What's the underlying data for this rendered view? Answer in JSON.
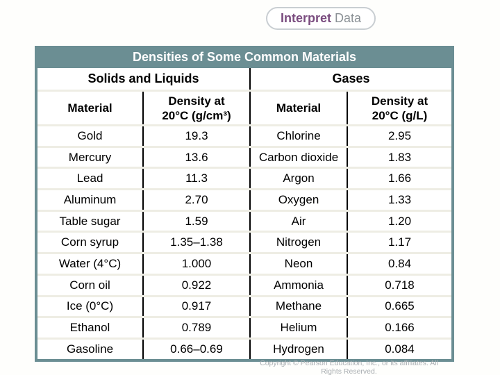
{
  "badge": {
    "bold_text": "Interpret",
    "light_text": "Data"
  },
  "table": {
    "title": "Densities of Some Common Materials",
    "section_left": "Solids and Liquids",
    "section_right": "Gases",
    "columns": [
      {
        "header": "Material"
      },
      {
        "header": "Density at\n20°C (g/cm³)"
      },
      {
        "header": "Material"
      },
      {
        "header": "Density at\n20°C (g/L)"
      }
    ],
    "rows": [
      {
        "solid": "Gold",
        "solid_density": "19.3",
        "gas": "Chlorine",
        "gas_density": "2.95"
      },
      {
        "solid": "Mercury",
        "solid_density": "13.6",
        "gas": "Carbon dioxide",
        "gas_density": "1.83"
      },
      {
        "solid": "Lead",
        "solid_density": "11.3",
        "gas": "Argon",
        "gas_density": "1.66"
      },
      {
        "solid": "Aluminum",
        "solid_density": "2.70",
        "gas": "Oxygen",
        "gas_density": "1.33"
      },
      {
        "solid": "Table sugar",
        "solid_density": "1.59",
        "gas": "Air",
        "gas_density": "1.20"
      },
      {
        "solid": "Corn syrup",
        "solid_density": "1.35–1.38",
        "gas": "Nitrogen",
        "gas_density": "1.17"
      },
      {
        "solid": "Water (4°C)",
        "solid_density": "1.000",
        "gas": "Neon",
        "gas_density": "0.84"
      },
      {
        "solid": "Corn oil",
        "solid_density": "0.922",
        "gas": "Ammonia",
        "gas_density": "0.718"
      },
      {
        "solid": "Ice (0°C)",
        "solid_density": "0.917",
        "gas": "Methane",
        "gas_density": "0.665"
      },
      {
        "solid": "Ethanol",
        "solid_density": "0.789",
        "gas": "Helium",
        "gas_density": "0.166"
      },
      {
        "solid": "Gasoline",
        "solid_density": "0.66–0.69",
        "gas": "Hydrogen",
        "gas_density": "0.084"
      }
    ]
  },
  "footer": {
    "copyright_line1": "Copyright © Pearson Education, Inc., or its affiliates. All",
    "copyright_line2": "Rights Reserved."
  },
  "colors": {
    "frame_teal": "#6b8e93",
    "row_separator": "#eeede4",
    "column_divider": "#000000",
    "badge_purple": "#7a4c7f",
    "badge_gray": "#8b9196",
    "copyright_gray": "#a9aeb2"
  }
}
